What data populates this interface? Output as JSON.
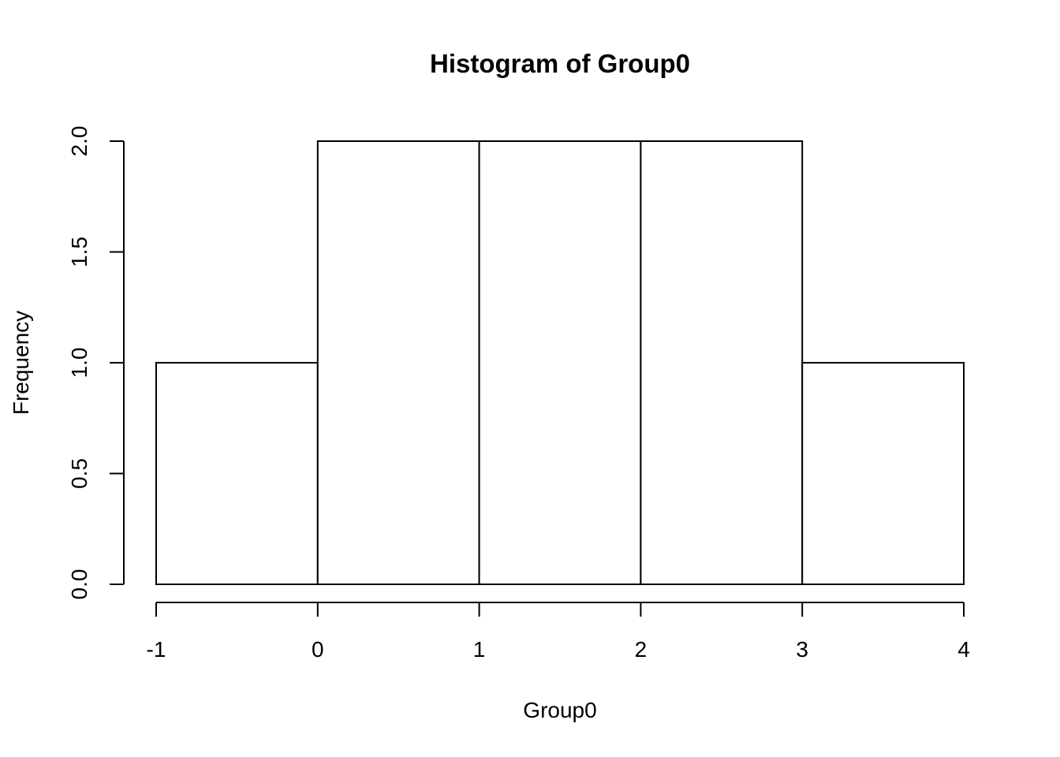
{
  "chart_data": {
    "type": "bar",
    "title": "Histogram of Group0",
    "xlabel": "Group0",
    "ylabel": "Frequency",
    "bins": [
      {
        "start": -1,
        "end": 0,
        "value": 1
      },
      {
        "start": 0,
        "end": 1,
        "value": 2
      },
      {
        "start": 1,
        "end": 2,
        "value": 2
      },
      {
        "start": 2,
        "end": 3,
        "value": 2
      },
      {
        "start": 3,
        "end": 4,
        "value": 1
      }
    ],
    "xlim": [
      -1,
      4
    ],
    "ylim": [
      0,
      2
    ],
    "x_ticks": [
      -1,
      0,
      1,
      2,
      3,
      4
    ],
    "x_tick_labels": [
      "-1",
      "0",
      "1",
      "2",
      "3",
      "4"
    ],
    "y_ticks": [
      0,
      0.5,
      1,
      1.5,
      2
    ],
    "y_tick_labels": [
      "0.0",
      "0.5",
      "1.0",
      "1.5",
      "2.0"
    ],
    "grid": false,
    "legend": "none",
    "colors": {
      "bar_fill": "#ffffff",
      "bar_stroke": "#000000",
      "background": "#ffffff"
    }
  }
}
